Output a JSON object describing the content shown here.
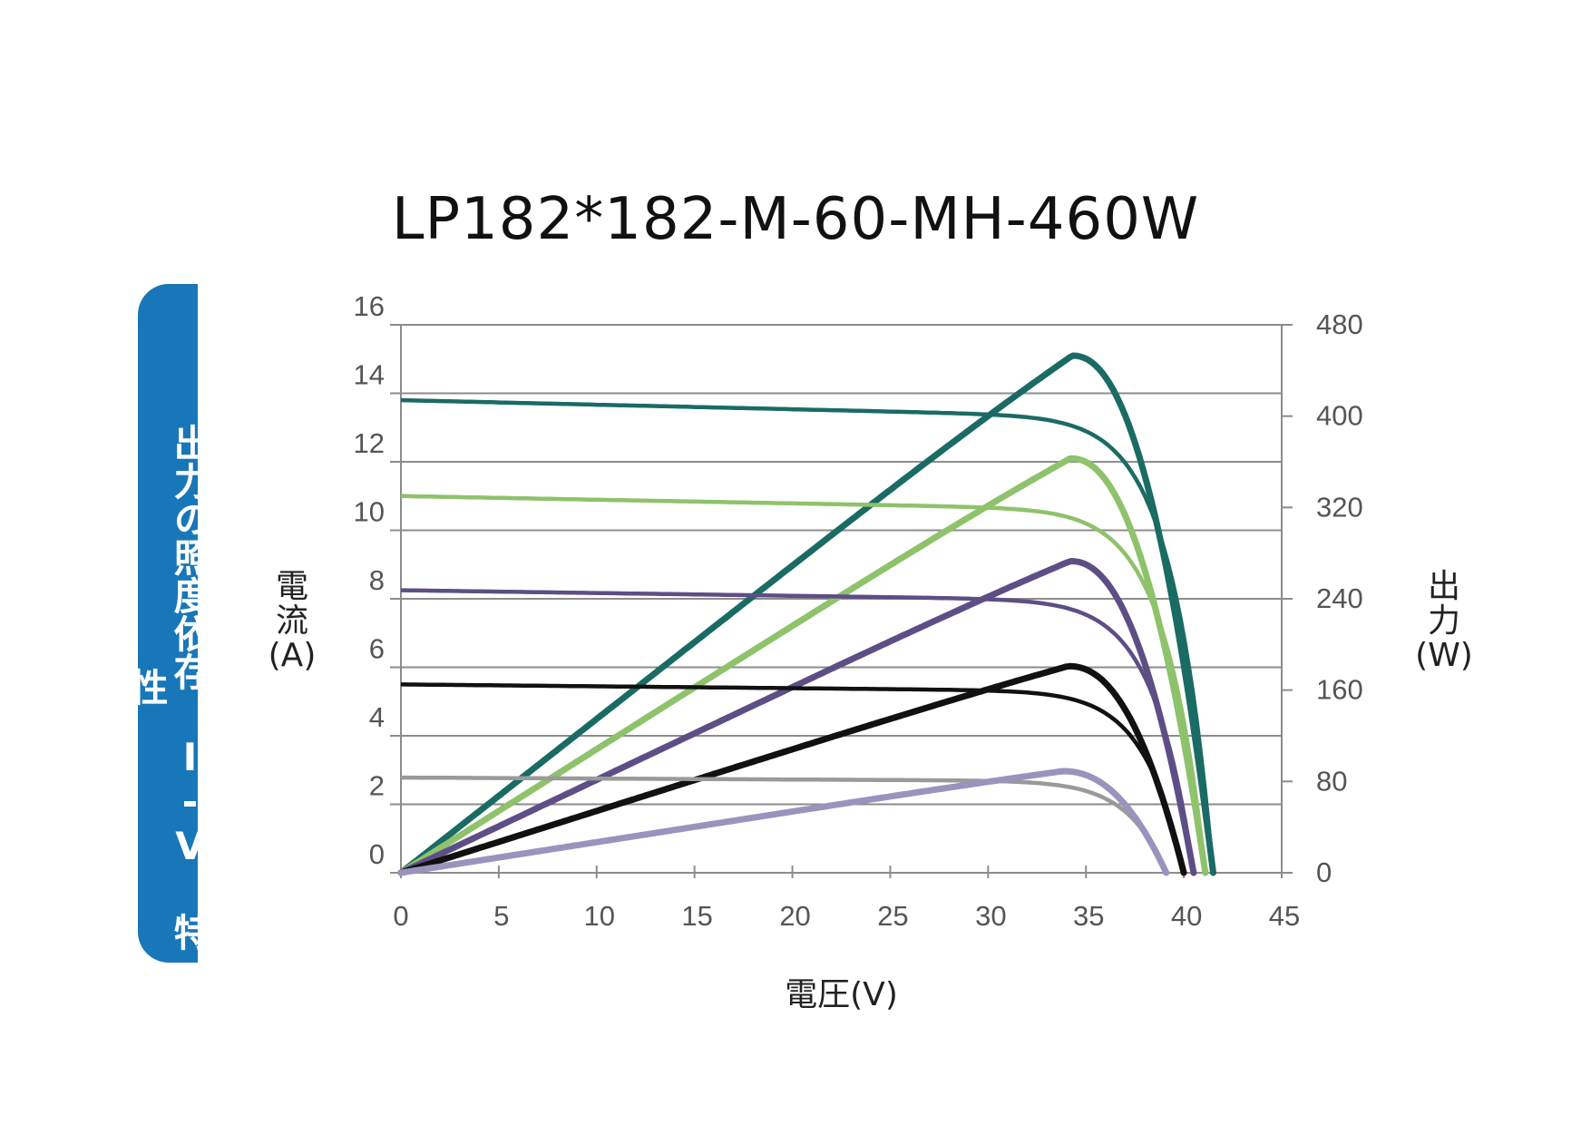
{
  "chart_data": {
    "type": "line",
    "title": "LP182*182-M-60-MH-460W",
    "side_label": "出力の照度依存 I-V 特性",
    "xlabel": "電圧(V)",
    "ylabel_left": [
      "電",
      "流",
      "(A)"
    ],
    "ylabel_right": [
      "出",
      "力",
      "(W)"
    ],
    "xlim": [
      0,
      45
    ],
    "ylim_left": [
      0,
      16
    ],
    "ylim_right": [
      0,
      480
    ],
    "x_ticks": [
      "0",
      "5",
      "10",
      "15",
      "20",
      "25",
      "30",
      "35",
      "40",
      "45"
    ],
    "y_left_ticks": [
      "0",
      "2",
      "4",
      "6",
      "8",
      "10",
      "12",
      "14",
      "16"
    ],
    "y_right_ticks": [
      "0",
      "80",
      "160",
      "240",
      "320",
      "400",
      "480"
    ],
    "grid": true,
    "series": [
      {
        "kind": "current",
        "color": "#1a6b64",
        "isc": 13.8,
        "voc": 41.5,
        "vmp": 34.3,
        "imp": 13.35
      },
      {
        "kind": "power",
        "color": "#1a6b64",
        "pmax": 453,
        "vmp": 34.3,
        "voc": 41.5
      },
      {
        "kind": "current",
        "color": "#8ec26b",
        "isc": 11.0,
        "voc": 41.1,
        "vmp": 34.2,
        "imp": 10.6
      },
      {
        "kind": "power",
        "color": "#8ec26b",
        "pmax": 363,
        "vmp": 34.2,
        "voc": 41.1
      },
      {
        "kind": "current",
        "color": "#5e4e86",
        "isc": 8.25,
        "voc": 40.5,
        "vmp": 34.2,
        "imp": 7.9
      },
      {
        "kind": "power",
        "color": "#5e4e86",
        "pmax": 273,
        "vmp": 34.2,
        "voc": 40.5
      },
      {
        "kind": "current",
        "color": "#111111",
        "isc": 5.5,
        "voc": 40.0,
        "vmp": 34.1,
        "imp": 5.25
      },
      {
        "kind": "power",
        "color": "#111111",
        "pmax": 181,
        "vmp": 34.1,
        "voc": 40.0
      },
      {
        "kind": "current",
        "color": "#9a9a9a",
        "isc": 2.78,
        "voc": 39.1,
        "vmp": 33.8,
        "imp": 2.62
      },
      {
        "kind": "power",
        "color": "#9b93bd",
        "pmax": 89,
        "vmp": 33.8,
        "voc": 39.1
      }
    ]
  }
}
